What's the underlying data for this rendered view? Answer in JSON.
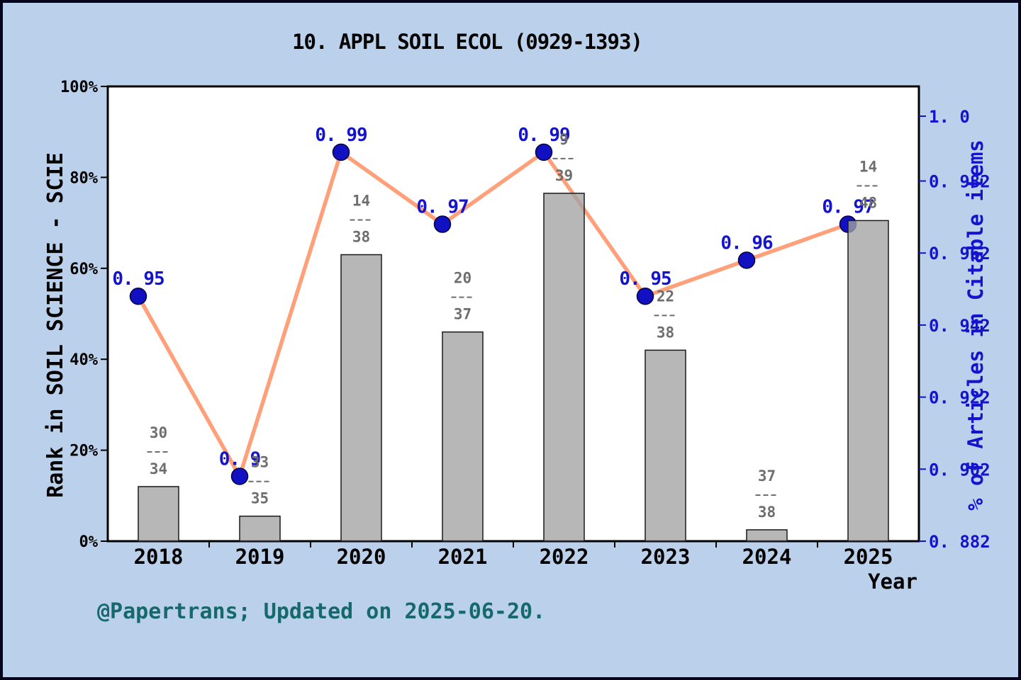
{
  "title": "10. APPL SOIL ECOL (0929-1393)",
  "caption": "@Papertrans; Updated on 2025-06-20.",
  "x_axis": {
    "label": "Year",
    "categories": [
      "2018",
      "2019",
      "2020",
      "2021",
      "2022",
      "2023",
      "2024",
      "2025"
    ]
  },
  "left_axis": {
    "label": "Rank in SOIL SCIENCE - SCIE",
    "tick_labels": [
      "0%",
      "20%",
      "40%",
      "60%",
      "80%",
      "100%"
    ],
    "tick_values": [
      0,
      20,
      40,
      60,
      80,
      100
    ]
  },
  "right_axis": {
    "label": "% of Articles in Citable items",
    "tick_labels": [
      "1. 0",
      "0. 982",
      "0. 962",
      "0. 942",
      "0. 922",
      "0. 902",
      "0. 882"
    ],
    "tick_values": [
      1.0,
      0.982,
      0.962,
      0.942,
      0.922,
      0.902,
      0.882
    ]
  },
  "chart_data": {
    "type": "bar",
    "subtype": "bar+line combo, dual axis",
    "title": "10. APPL SOIL ECOL (0929-1393)",
    "xlabel": "Year",
    "categories": [
      "2018",
      "2019",
      "2020",
      "2021",
      "2022",
      "2023",
      "2024",
      "2025"
    ],
    "series": [
      {
        "name": "Rank in SOIL SCIENCE - SCIE",
        "type": "bar",
        "axis": "left",
        "unit": "%",
        "values": [
          12,
          5.5,
          63,
          46,
          76.5,
          42,
          2.5,
          70.5
        ],
        "bar_labels": [
          {
            "numerator": "30",
            "denominator": "34"
          },
          {
            "numerator": "33",
            "denominator": "35"
          },
          {
            "numerator": "14",
            "denominator": "38"
          },
          {
            "numerator": "20",
            "denominator": "37"
          },
          {
            "numerator": "9",
            "denominator": "39"
          },
          {
            "numerator": "22",
            "denominator": "38"
          },
          {
            "numerator": "37",
            "denominator": "38"
          },
          {
            "numerator": "14",
            "denominator": "48"
          }
        ]
      },
      {
        "name": "% of Articles in Citable items",
        "type": "line",
        "axis": "right",
        "values": [
          0.95,
          0.9,
          0.99,
          0.97,
          0.99,
          0.95,
          0.96,
          0.97
        ],
        "point_labels": [
          "0. 95",
          "0. 9",
          "0. 99",
          "0. 97",
          "0. 99",
          "0. 95",
          "0. 96",
          "0. 97"
        ]
      }
    ],
    "left_ylim": [
      0,
      100
    ],
    "right_ylim": [
      0.882,
      1.0
    ],
    "grid": false,
    "legend": "none"
  },
  "colors": {
    "background": "#bbd1eb",
    "frame_border": "#05051e",
    "plot_background": "#ffffff",
    "spine": "#000000",
    "bar_fill": "#a3a3a3",
    "bar_opacity": "0.78",
    "bar_stroke": "#1a1a1a",
    "line": "#ffa07a",
    "marker_fill": "#1111c2",
    "marker_stroke": "#04043a",
    "blue_text": "#1414cd",
    "gray_text": "#6e6e6e",
    "caption_text": "#15696b",
    "black_text": "#000000"
  }
}
